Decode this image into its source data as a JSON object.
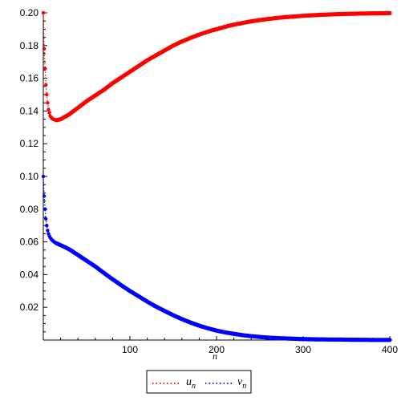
{
  "chart_data": {
    "type": "scatter",
    "title": "",
    "xlabel": "n",
    "ylabel": "",
    "xlim": [
      0,
      400
    ],
    "ylim": [
      0,
      0.2
    ],
    "x_ticks": [
      100,
      200,
      300,
      400
    ],
    "x_tick_labels": [
      "100",
      "200",
      "300",
      "400"
    ],
    "y_ticks": [
      0.02,
      0.04,
      0.06,
      0.08,
      0.1,
      0.12,
      0.14,
      0.16,
      0.18,
      0.2
    ],
    "y_tick_labels": [
      "0.02",
      "0.04",
      "0.06",
      "0.08",
      "0.10",
      "0.12",
      "0.14",
      "0.16",
      "0.18",
      "0.20"
    ],
    "grid": false,
    "legend_position": "bottom-center",
    "series": [
      {
        "name": "u",
        "name_subscript": "n",
        "color": "#ff0000",
        "marker": "dot",
        "line_style": "dotted",
        "x": [
          0,
          1,
          2,
          3,
          4,
          5,
          6,
          7,
          8,
          10,
          12,
          15,
          20,
          30,
          40,
          50,
          60,
          70,
          80,
          90,
          100,
          110,
          120,
          130,
          140,
          150,
          160,
          170,
          180,
          190,
          200,
          210,
          220,
          230,
          240,
          250,
          260,
          270,
          280,
          290,
          300,
          320,
          340,
          360,
          380,
          400
        ],
        "y": [
          0.2,
          0.178,
          0.166,
          0.156,
          0.15,
          0.145,
          0.141,
          0.139,
          0.137,
          0.1355,
          0.1348,
          0.1344,
          0.135,
          0.138,
          0.142,
          0.146,
          0.1495,
          0.153,
          0.157,
          0.1605,
          0.164,
          0.1675,
          0.171,
          0.174,
          0.177,
          0.18,
          0.1825,
          0.1847,
          0.1867,
          0.1885,
          0.19,
          0.1915,
          0.1928,
          0.1938,
          0.1948,
          0.1956,
          0.1963,
          0.1969,
          0.1974,
          0.1978,
          0.1982,
          0.1988,
          0.1992,
          0.1995,
          0.1997,
          0.1998
        ]
      },
      {
        "name": "v",
        "name_subscript": "n",
        "color": "#0000ff",
        "marker": "dot",
        "line_style": "dotted",
        "x": [
          0,
          1,
          2,
          3,
          4,
          5,
          6,
          7,
          8,
          10,
          12,
          15,
          20,
          30,
          40,
          50,
          60,
          70,
          80,
          90,
          100,
          110,
          120,
          130,
          140,
          150,
          160,
          170,
          180,
          190,
          200,
          210,
          220,
          230,
          240,
          250,
          260,
          270,
          280,
          290,
          300,
          320,
          340,
          360,
          380,
          400
        ],
        "y": [
          0.1,
          0.088,
          0.08,
          0.074,
          0.07,
          0.067,
          0.065,
          0.0635,
          0.0625,
          0.0612,
          0.0602,
          0.0592,
          0.058,
          0.0555,
          0.052,
          0.0485,
          0.045,
          0.041,
          0.0372,
          0.0335,
          0.03,
          0.0268,
          0.0235,
          0.0205,
          0.0178,
          0.0152,
          0.0128,
          0.0107,
          0.0088,
          0.0072,
          0.0058,
          0.0047,
          0.0038,
          0.003,
          0.0024,
          0.0019,
          0.0015,
          0.0012,
          0.001,
          0.0008,
          0.0006,
          0.0004,
          0.0003,
          0.0002,
          0.0001,
          0.0001
        ]
      }
    ]
  }
}
